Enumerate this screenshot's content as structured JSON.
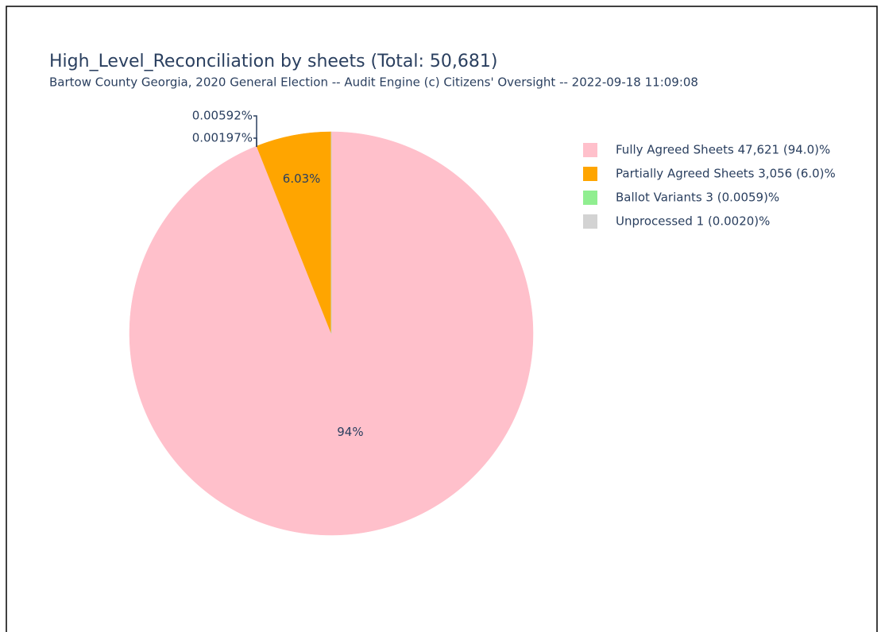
{
  "chart_data": {
    "type": "pie",
    "title": "High_Level_Reconciliation by sheets (Total: 50,681)",
    "subtitle": "Bartow County Georgia, 2020 General Election -- Audit Engine (c) Citizens' Oversight -- 2022-09-18 11:09:08",
    "categories": [
      "Fully Agreed Sheets 47,621 (94.0)%",
      "Partially Agreed Sheets 3,056 (6.0)%",
      "Ballot Variants 3 (0.0059)%",
      "Unprocessed 1 (0.0020)%"
    ],
    "values": [
      94,
      6.03,
      0.00592,
      0.00197
    ],
    "value_labels": [
      "94%",
      "6.03%",
      "0.00592%",
      "0.00197%"
    ],
    "colors": [
      "#ffc0cb",
      "#ffa500",
      "#90ee90",
      "#d3d3d3"
    ],
    "legend": "right"
  }
}
